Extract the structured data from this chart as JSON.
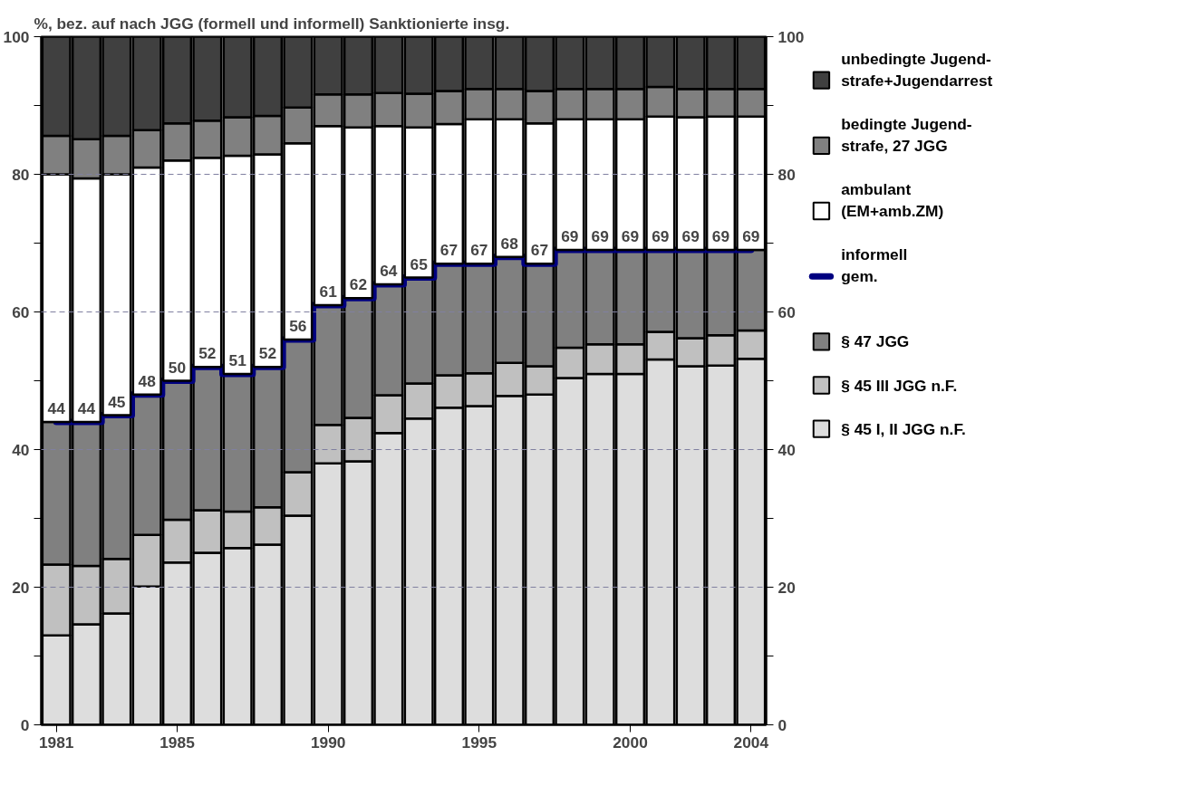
{
  "chart_data": {
    "type": "bar",
    "stacked": true,
    "title": "%, bez. auf nach JGG (formell und informell) Sanktionierte insg.",
    "x": [
      1981,
      1982,
      1983,
      1984,
      1985,
      1986,
      1987,
      1988,
      1989,
      1990,
      1991,
      1992,
      1993,
      1994,
      1995,
      1996,
      1997,
      1998,
      1999,
      2000,
      2001,
      2002,
      2003,
      2004
    ],
    "xlim": [
      1980.5,
      2004.5
    ],
    "xticks": [
      1981,
      1985,
      1990,
      1995,
      2000,
      2004
    ],
    "ylim": [
      0,
      100
    ],
    "yticks": [
      0,
      {
        "value": 10,
        "label": null
      },
      20,
      {
        "value": 30,
        "label": null
      },
      40,
      {
        "value": 50,
        "label": null
      },
      60,
      {
        "value": 70,
        "label": null
      },
      80,
      {
        "value": 90,
        "label": null
      },
      100
    ],
    "y2lim": [
      0,
      100
    ],
    "y2ticks": [
      0,
      {
        "value": 10,
        "label": null
      },
      20,
      {
        "value": 30,
        "label": null
      },
      40,
      {
        "value": 50,
        "label": null
      },
      60,
      {
        "value": 70,
        "label": null
      },
      80,
      {
        "value": 90,
        "label": null
      },
      100
    ],
    "grid": "y",
    "legend": "right",
    "series": [
      {
        "name": "§ 45 I, II JGG n.F.",
        "color": "#dddddd",
        "values": [
          13.0,
          14.6,
          16.2,
          20.1,
          23.6,
          25.0,
          25.7,
          26.2,
          30.4,
          38.0,
          38.3,
          42.4,
          44.5,
          46.1,
          46.3,
          47.8,
          48.0,
          50.4,
          51.0,
          51.0,
          53.1,
          52.1,
          52.2,
          53.2
        ]
      },
      {
        "name": "§ 45 III  JGG n.F.",
        "color": "#c0c0c0",
        "values": [
          10.3,
          8.5,
          7.9,
          7.5,
          6.2,
          6.2,
          5.3,
          5.4,
          6.3,
          5.6,
          6.3,
          5.5,
          5.1,
          4.7,
          4.8,
          4.8,
          4.1,
          4.4,
          4.3,
          4.3,
          4.0,
          4.1,
          4.4,
          4.1
        ]
      },
      {
        "name": "§ 47 JGG",
        "color": "#808080",
        "values": [
          20.7,
          20.9,
          20.9,
          20.4,
          20.2,
          20.8,
          20.0,
          20.4,
          19.3,
          17.4,
          17.4,
          16.1,
          15.4,
          16.2,
          15.9,
          15.4,
          14.9,
          14.2,
          13.7,
          13.7,
          11.9,
          12.8,
          12.4,
          11.7
        ]
      },
      {
        "name": " informell\n gem.",
        "type": "step",
        "color": "#000080",
        "values": [
          44,
          44,
          45,
          48,
          50,
          52,
          51,
          52,
          56,
          61,
          62,
          64,
          65,
          67,
          67,
          68,
          67,
          69,
          69,
          69,
          69,
          69,
          69,
          69
        ],
        "value_labels": [
          "44",
          "44",
          "45",
          "48",
          "50",
          "52",
          "51",
          "52",
          "56",
          "61",
          "62",
          "64",
          "65",
          "67",
          "67",
          "68",
          "67",
          "69",
          "69",
          "69",
          "69",
          "69",
          "69",
          "69"
        ]
      },
      {
        "name": "ambulant\n(EM+amb.ZM)",
        "color": "#ffffff",
        "values": [
          36.0,
          35.4,
          35.0,
          33.0,
          32.0,
          30.4,
          31.7,
          30.9,
          28.5,
          26.0,
          24.8,
          23.0,
          21.8,
          20.3,
          21.0,
          20.0,
          20.4,
          19.0,
          19.0,
          19.0,
          19.4,
          19.3,
          19.4,
          19.4
        ]
      },
      {
        "name": "bedingte Jugend-\nstrafe, 27 JGG",
        "color": "#808080",
        "values": [
          5.6,
          5.7,
          5.6,
          5.4,
          5.4,
          5.4,
          5.6,
          5.6,
          5.2,
          4.6,
          4.8,
          4.8,
          4.9,
          4.8,
          4.4,
          4.4,
          4.7,
          4.4,
          4.4,
          4.4,
          4.3,
          4.1,
          4.0,
          4.0
        ]
      },
      {
        "name": "unbedingte Jugend-\nstrafe+Jugendarrest",
        "color": "#404040",
        "values": [
          14.4,
          14.9,
          14.4,
          13.6,
          12.6,
          12.2,
          11.7,
          11.5,
          10.3,
          8.4,
          8.4,
          8.2,
          8.3,
          7.9,
          7.6,
          7.6,
          7.9,
          7.6,
          7.6,
          7.6,
          7.3,
          7.6,
          7.6,
          7.6
        ]
      }
    ]
  }
}
